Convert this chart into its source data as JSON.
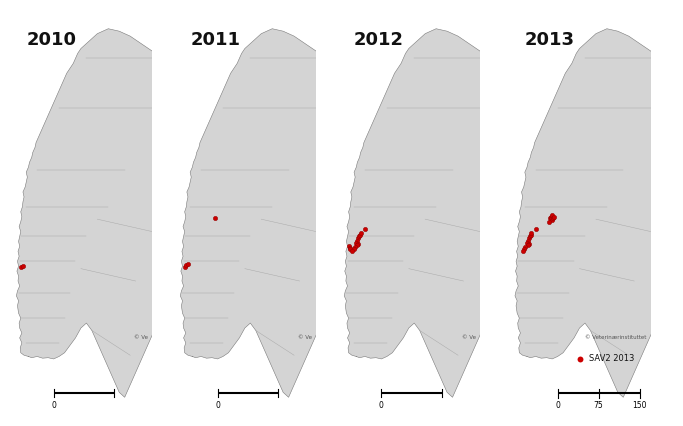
{
  "years": [
    "2010",
    "2011",
    "2012",
    "2013"
  ],
  "background_color": "#ffffff",
  "map_fill_color": "#d4d4d4",
  "map_edge_color": "#7a7a7a",
  "county_line_color": "#aaaaaa",
  "point_color": "#cc0000",
  "legend_label": "SAV2 2013",
  "copyright_text": "© Veterinærinstituttet",
  "copyright_text_short": "© Ve",
  "scale_labels": [
    "0",
    "75",
    "150"
  ],
  "points_2010": [
    [
      5.05,
      61.55
    ],
    [
      5.25,
      61.6
    ]
  ],
  "points_2011": [
    [
      5.05,
      61.55
    ],
    [
      5.1,
      61.65
    ],
    [
      5.3,
      61.7
    ],
    [
      7.8,
      63.55
    ]
  ],
  "points_2012": [
    [
      5.05,
      62.42
    ],
    [
      5.15,
      62.35
    ],
    [
      5.1,
      62.28
    ],
    [
      5.85,
      62.72
    ],
    [
      5.95,
      62.8
    ],
    [
      6.05,
      62.85
    ],
    [
      6.1,
      62.95
    ],
    [
      5.8,
      62.62
    ],
    [
      5.7,
      62.55
    ],
    [
      6.5,
      63.1
    ],
    [
      5.9,
      62.5
    ],
    [
      5.75,
      62.45
    ],
    [
      5.55,
      62.38
    ],
    [
      5.45,
      62.3
    ],
    [
      5.3,
      62.22
    ]
  ],
  "points_2013": [
    [
      5.85,
      62.72
    ],
    [
      5.95,
      62.8
    ],
    [
      6.05,
      62.85
    ],
    [
      6.1,
      62.95
    ],
    [
      5.8,
      62.62
    ],
    [
      5.7,
      62.55
    ],
    [
      6.5,
      63.1
    ],
    [
      5.9,
      62.5
    ],
    [
      5.75,
      62.45
    ],
    [
      5.55,
      62.38
    ],
    [
      5.45,
      62.3
    ],
    [
      5.3,
      62.22
    ],
    [
      7.8,
      63.55
    ],
    [
      7.9,
      63.6
    ],
    [
      8.0,
      63.65
    ],
    [
      7.85,
      63.5
    ],
    [
      7.95,
      63.45
    ],
    [
      8.1,
      63.55
    ],
    [
      8.2,
      63.6
    ],
    [
      7.7,
      63.4
    ]
  ],
  "figsize": [
    6.83,
    4.26
  ],
  "dpi": 100,
  "lon_min": 4.5,
  "lon_max": 17.0,
  "lat_min": 56.0,
  "lat_max": 71.5
}
